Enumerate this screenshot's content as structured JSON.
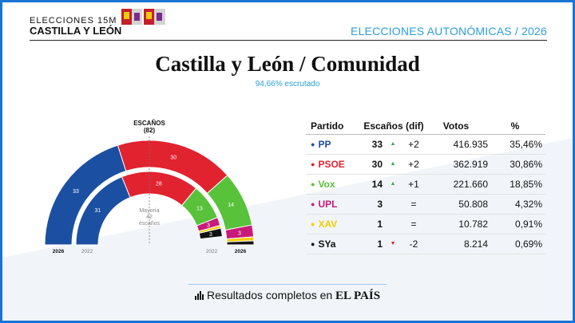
{
  "brand": {
    "line1": "ELECCIONES 15M",
    "line2": "CASTILLA Y LEÓN"
  },
  "header": {
    "section": "ELECCIONES AUTONÓMICAS / 2026"
  },
  "title": "Castilla y León / Comunidad",
  "scrutiny": "94,66% escrutado",
  "chart": {
    "label_title": "ESCAÑOS",
    "label_total": "(82)",
    "majority_line1": "Mayoría",
    "majority_line2": "42",
    "majority_line3": "escaños",
    "outer_year": "2026",
    "inner_year": "2022",
    "inner_year_right": "2022",
    "outer_year_right": "2026"
  },
  "chart_data": {
    "type": "hemicycle",
    "total_seats": 82,
    "majority": 42,
    "series": [
      {
        "name": "2026",
        "parties": [
          "PP",
          "PSOE",
          "Vox",
          "UPL",
          "XAV",
          "SYa"
        ],
        "seats": [
          33,
          30,
          14,
          3,
          1,
          1
        ],
        "seat_labels": [
          "33",
          "30",
          "14",
          "3",
          "",
          ""
        ]
      },
      {
        "name": "2022",
        "parties": [
          "PP",
          "PSOE",
          "Vox",
          "UPL",
          "XAV",
          "SYa"
        ],
        "seats": [
          31,
          28,
          13,
          3,
          1,
          3
        ],
        "seat_labels": [
          "31",
          "28",
          "13",
          "3",
          "",
          "3"
        ]
      }
    ]
  },
  "colors": {
    "PP": "#1b4fa1",
    "PSOE": "#e1222f",
    "Vox": "#58c23a",
    "UPL": "#c71a7a",
    "XAV": "#f3cc00",
    "SYa": "#111111",
    "up": "#2fa84f",
    "down": "#d9252f",
    "accent": "#2a9fdc"
  },
  "table": {
    "headers": {
      "party": "Partido",
      "seats": "Escaños (dif)",
      "votes": "Votos",
      "pct": "%"
    },
    "rows": [
      {
        "party": "PP",
        "seats": "33",
        "arrow": "▲",
        "diff": "+2",
        "votes": "416.935",
        "pct": "35,46%"
      },
      {
        "party": "PSOE",
        "seats": "30",
        "arrow": "▲",
        "diff": "+2",
        "votes": "362.919",
        "pct": "30,86%"
      },
      {
        "party": "Vox",
        "seats": "14",
        "arrow": "▲",
        "diff": "+1",
        "votes": "221.660",
        "pct": "18,85%"
      },
      {
        "party": "UPL",
        "seats": "3",
        "arrow": "",
        "diff": "=",
        "votes": "50.808",
        "pct": "4,32%"
      },
      {
        "party": "XAV",
        "seats": "1",
        "arrow": "",
        "diff": "=",
        "votes": "10.782",
        "pct": "0,91%"
      },
      {
        "party": "SYa",
        "seats": "1",
        "arrow": "▼",
        "diff": "-2",
        "votes": "8.214",
        "pct": "0,69%"
      }
    ]
  },
  "footer": {
    "text": "Resultados completos en",
    "brand": "EL PAÍS"
  }
}
